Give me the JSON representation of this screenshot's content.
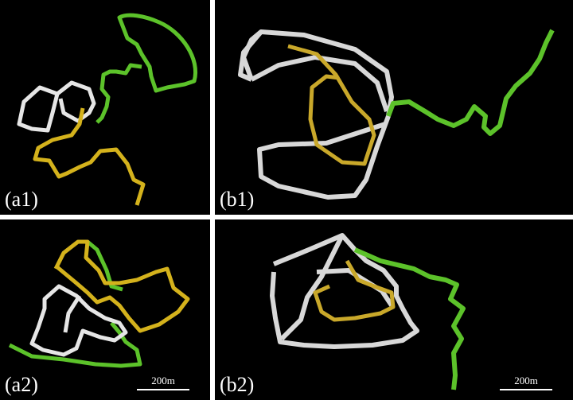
{
  "panels": {
    "a1": {
      "label": "(a1)"
    },
    "b1": {
      "label": "(b1)"
    },
    "a2": {
      "label": "(a2)",
      "scale": "200m"
    },
    "b2": {
      "label": "(b2)",
      "scale": "200m"
    }
  },
  "colors": {
    "background": "#000000",
    "white_track": "#d8d8d8",
    "yellow_track": "#d4b21c",
    "green_track": "#5cc22a",
    "divider": "#ffffff"
  }
}
